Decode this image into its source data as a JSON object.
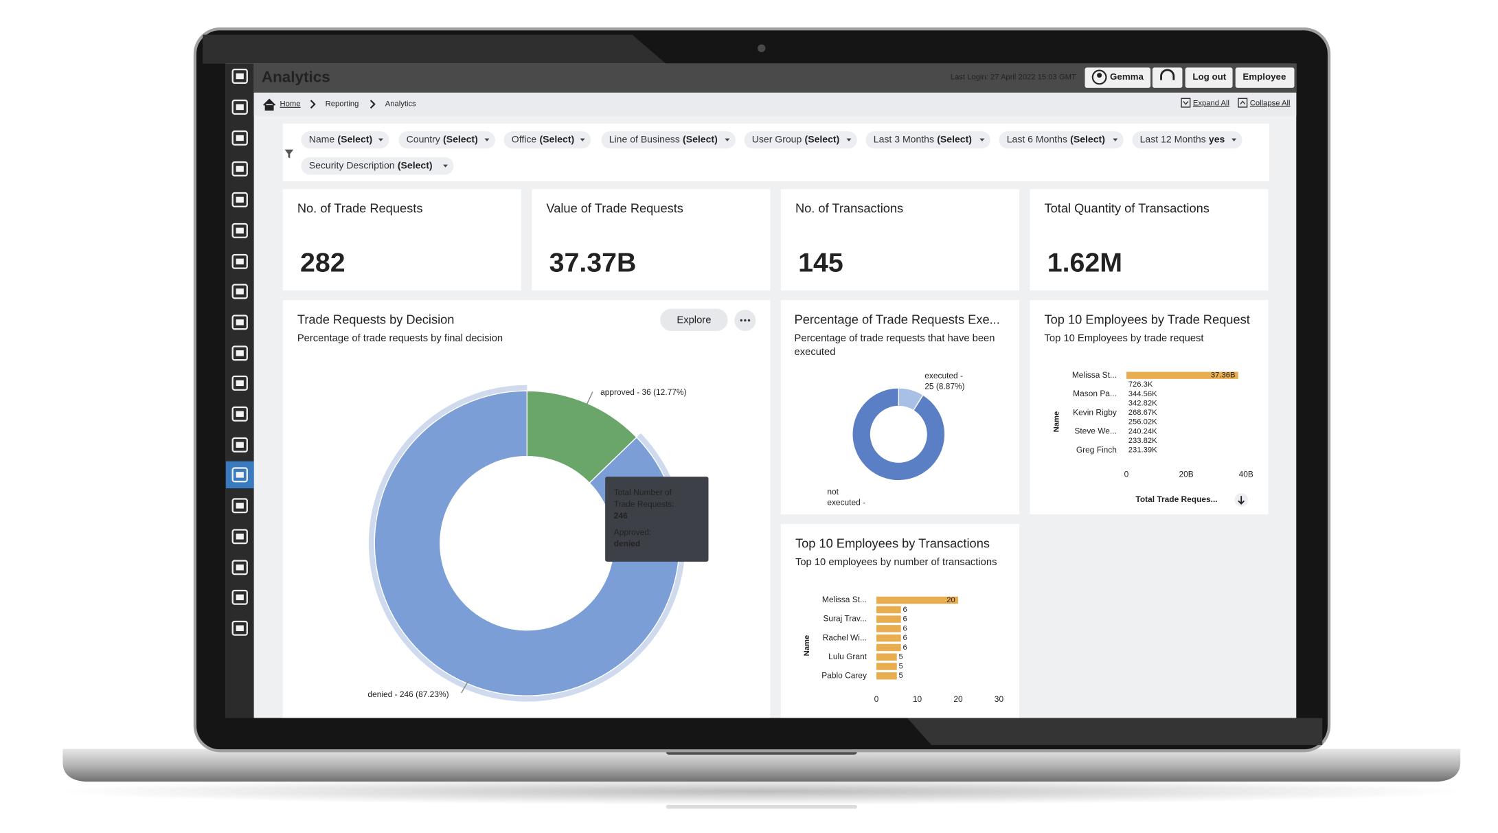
{
  "header": {
    "title": "Analytics",
    "last_login": "Last Login: 27 April 2022 15:03 GMT",
    "user": "Gemma",
    "logout": "Log out",
    "role": "Employee"
  },
  "breadcrumb": {
    "items": [
      "Home",
      "Reporting",
      "Analytics"
    ],
    "expand_all": "Expand All",
    "collapse_all": "Collapse All"
  },
  "filters": [
    {
      "name": "Name",
      "value": "(Select)"
    },
    {
      "name": "Country",
      "value": "(Select)"
    },
    {
      "name": "Office",
      "value": "(Select)"
    },
    {
      "name": "Line of Business",
      "value": "(Select)"
    },
    {
      "name": "User Group",
      "value": "(Select)"
    },
    {
      "name": "Last 3 Months",
      "value": "(Select)"
    },
    {
      "name": "Last 6 Months",
      "value": "(Select)"
    },
    {
      "name": "Last 12 Months",
      "value": "yes"
    },
    {
      "name": "Security Description",
      "value": "(Select)"
    }
  ],
  "kpis": [
    {
      "title": "No. of Trade Requests",
      "value": "282"
    },
    {
      "title": "Value of Trade Requests",
      "value": "37.37B"
    },
    {
      "title": "No. of Transactions",
      "value": "145"
    },
    {
      "title": "Total Quantity of Transactions",
      "value": "1.62M"
    }
  ],
  "decision": {
    "title": "Trade Requests by Decision",
    "subtitle": "Percentage of trade requests by final decision",
    "explore": "Explore",
    "slices": [
      {
        "label": "approved - 36 (12.77%)",
        "value": 36,
        "color": "#6aa66a"
      },
      {
        "label": "denied - 246 (87.23%)",
        "value": 246,
        "color": "#7b9ed6"
      }
    ],
    "tooltip": {
      "label_lines": [
        "Total Number of",
        "Trade Requests:"
      ],
      "group_label": "Approved:",
      "group_value": "denied"
    }
  },
  "executed": {
    "title": "Percentage of Trade Requests Exe...",
    "subtitle_lines": [
      "Percentage of trade requests that have been",
      "executed"
    ],
    "slices": [
      {
        "label_lines": [
          "executed -",
          "25 (8.87%)"
        ],
        "value": 25,
        "color": "#a9c0e6"
      },
      {
        "label_lines": [
          "not",
          "executed -"
        ],
        "value": 257,
        "color": "#5b7fc4"
      }
    ]
  },
  "top_trade_requests": {
    "type": "bar",
    "title": "Top 10 Employees by Trade Request",
    "subtitle": "Top 10 Employees by trade request",
    "categories": [
      "Melissa St...",
      null,
      "Mason Pa...",
      null,
      "Kevin Rigby",
      null,
      "Steve We...",
      null,
      "Greg Finch"
    ],
    "values": [
      37360000000,
      726300,
      344560,
      342820,
      268670,
      256020,
      240240,
      233820,
      231390
    ],
    "value_labels": [
      "37.36B",
      "726.3K",
      "344.56K",
      "342.82K",
      "268.67K",
      "256.02K",
      "240.24K",
      "233.82K",
      "231.39K"
    ],
    "color": "#e8ad4e",
    "xlim": [
      0,
      40000000000
    ],
    "xticks": [
      0,
      {
        "value": 20000000000,
        "label": "20B"
      },
      {
        "value": 40000000000,
        "label": "40B"
      }
    ],
    "ylabel": "Name",
    "xlabel": "Total Trade Reques..."
  },
  "top_transactions": {
    "type": "bar",
    "title": "Top 10 Employees by Transactions",
    "subtitle": "Top 10 employees by number of transactions",
    "categories": [
      "Melissa St...",
      null,
      "Suraj Trav...",
      null,
      "Rachel Wi...",
      null,
      "Lulu Grant",
      null,
      "Pablo Carey"
    ],
    "values": [
      20,
      6,
      6,
      6,
      6,
      6,
      5,
      5,
      5
    ],
    "color": "#e8ad4e",
    "xlim": [
      0,
      30
    ],
    "xticks": [
      0,
      10,
      20,
      30
    ],
    "ylabel": "Name"
  }
}
